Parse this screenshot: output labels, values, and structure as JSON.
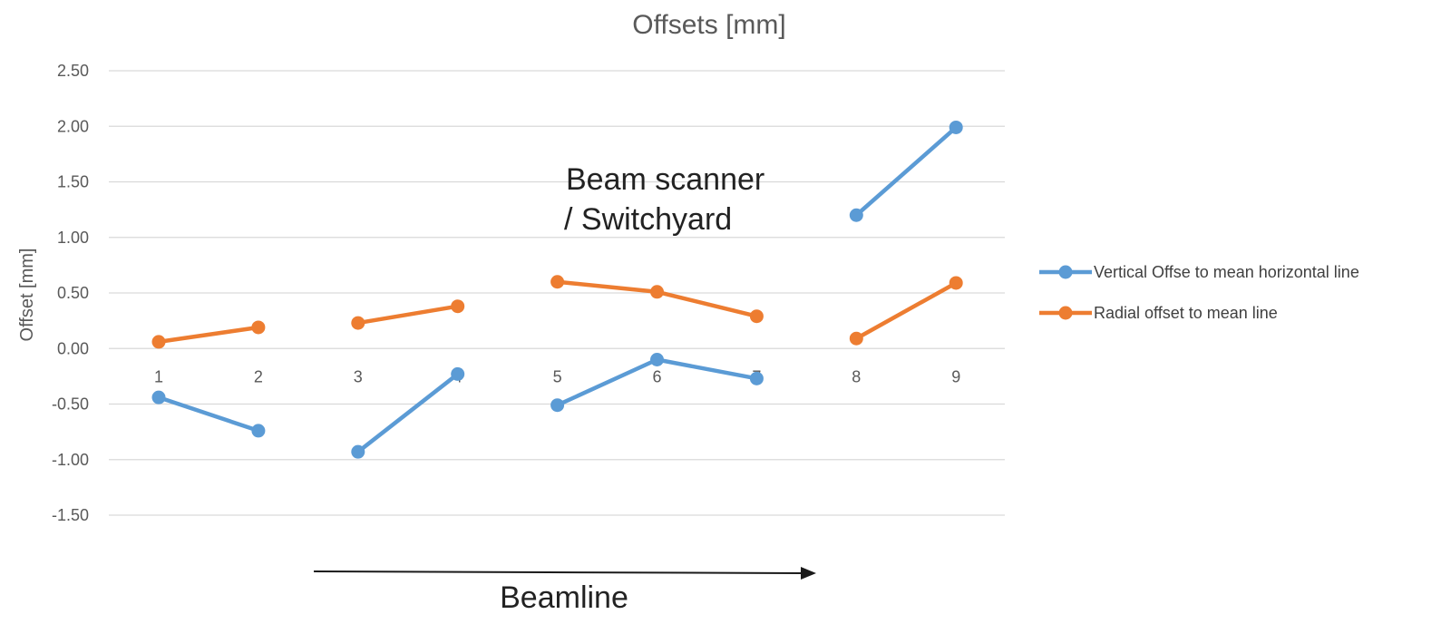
{
  "chart_data": {
    "type": "line",
    "title": "Offsets [mm]",
    "xlabel": "",
    "ylabel": "Offset [mm]",
    "categories": [
      "1",
      "2",
      "3",
      "4",
      "5",
      "6",
      "7",
      "8",
      "9"
    ],
    "ylim": [
      -1.5,
      2.5
    ],
    "yticks": [
      "2.50",
      "2.00",
      "1.50",
      "1.00",
      "0.50",
      "0.00",
      "-0.50",
      "-1.00",
      "-1.50"
    ],
    "grid": true,
    "legend_position": "right",
    "series": [
      {
        "name": "Vertical Offse to mean horizontal line",
        "color": "#5B9BD5",
        "values": [
          -0.44,
          -0.74,
          -0.93,
          -0.23,
          -0.51,
          -0.1,
          -0.27,
          1.2,
          1.99
        ],
        "segments": [
          [
            0,
            1
          ],
          [
            2,
            3
          ],
          [
            4,
            5,
            6
          ],
          [
            7,
            8
          ]
        ]
      },
      {
        "name": "Radial offset  to mean line",
        "color": "#ED7D31",
        "values": [
          0.06,
          0.19,
          0.23,
          0.38,
          0.6,
          0.51,
          0.29,
          0.09,
          0.59
        ],
        "segments": [
          [
            0,
            1
          ],
          [
            2,
            3
          ],
          [
            4,
            5,
            6
          ],
          [
            7,
            8
          ]
        ]
      }
    ],
    "annotations": {
      "scanner_line1": "Beam scanner",
      "scanner_line2": "/ Switchyard",
      "beamline": "Beamline"
    }
  }
}
